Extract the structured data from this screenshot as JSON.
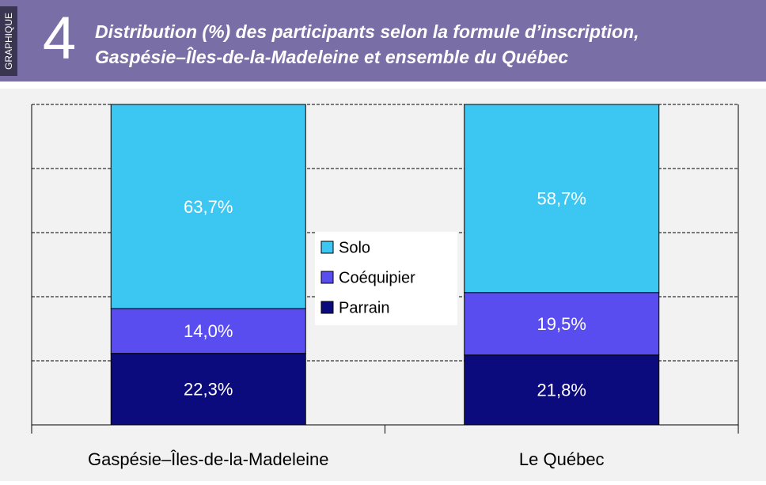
{
  "header": {
    "label": "GRAPHIQUE",
    "number": "4"
  },
  "chart_data": {
    "type": "stacked_bar",
    "title": [
      "Distribution (%) des participants selon la formule d’inscription,",
      "Gaspésie–Îles-de-la-Madeleine et ensemble du Québec"
    ],
    "categories": [
      "Gaspésie–Îles-de-la-Madeleine",
      "Le Québec"
    ],
    "series": [
      {
        "name": "Parrain",
        "color": "#0b0b7d",
        "values": [
          22.3,
          21.8
        ],
        "value_labels": [
          "22,3%",
          "21,8%"
        ]
      },
      {
        "name": "Coéquipier",
        "color": "#5a4df0",
        "values": [
          14.0,
          19.5
        ],
        "value_labels": [
          "14,0%",
          "19,5%"
        ]
      },
      {
        "name": "Solo",
        "color": "#3cc6f2",
        "values": [
          63.7,
          58.7
        ],
        "value_labels": [
          "63,7%",
          "58,7%"
        ]
      }
    ],
    "ylim": [
      0,
      100
    ],
    "yticks": [
      0,
      20,
      40,
      60,
      80,
      100
    ],
    "grid": true,
    "legend": "center"
  }
}
